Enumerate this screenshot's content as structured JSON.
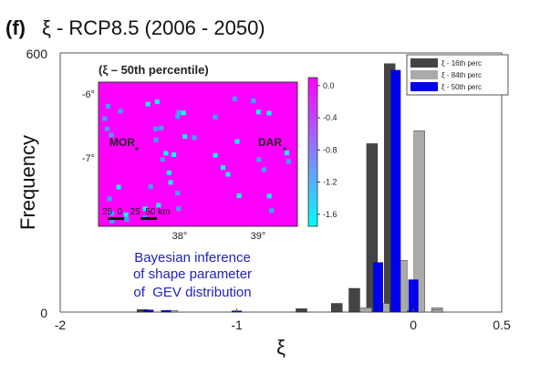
{
  "figure": {
    "panel_label": "(f)",
    "title_text": "ξ - RCP8.5 (2006 - 2050)",
    "annotation_lines": [
      "Bayesian inference",
      "of shape parameter",
      "of  GEV distribution"
    ]
  },
  "chart_data": [
    {
      "type": "bar",
      "title": "ξ - RCP8.5 (2006 - 2050)",
      "xlabel": "ξ",
      "ylabel": "Frequency",
      "xlim": [
        -2,
        0.5
      ],
      "ylim": [
        0,
        600
      ],
      "xticks": [
        -2,
        -1,
        0,
        0.5
      ],
      "xtick_labels": [
        "-2",
        "-1",
        "0",
        "0.5"
      ],
      "yticks": [
        0,
        600
      ],
      "ytick_labels": [
        "0",
        "600"
      ],
      "legend_position": "top-right",
      "grid": false,
      "bin_width": 0.1,
      "series": [
        {
          "name": "ξ - 16th perc",
          "color": "#444444",
          "bins": [
            {
              "x": -1.5,
              "value": 6
            },
            {
              "x": -0.6,
              "value": 8
            },
            {
              "x": -0.4,
              "value": 20
            },
            {
              "x": -0.3,
              "value": 55
            },
            {
              "x": -0.2,
              "value": 390
            },
            {
              "x": -0.1,
              "value": 575
            },
            {
              "x": 0.0,
              "value": 3
            }
          ]
        },
        {
          "name": "ξ - 84th perc",
          "color": "#aaaaaa",
          "bins": [
            {
              "x": -1.4,
              "value": 4
            },
            {
              "x": -0.3,
              "value": 10
            },
            {
              "x": -0.2,
              "value": 20
            },
            {
              "x": -0.1,
              "value": 120
            },
            {
              "x": 0.0,
              "value": 420
            },
            {
              "x": 0.1,
              "value": 10
            },
            {
              "x": 0.1,
              "value": 5
            }
          ]
        },
        {
          "name": "ξ - 50th perc",
          "color": "#0000ee",
          "bins": [
            {
              "x": -1.5,
              "value": 5
            },
            {
              "x": -1.4,
              "value": 4
            },
            {
              "x": -1.0,
              "value": 3
            },
            {
              "x": -0.2,
              "value": 115
            },
            {
              "x": -0.1,
              "value": 560
            },
            {
              "x": 0.0,
              "value": 75
            }
          ]
        }
      ]
    },
    {
      "type": "heatmap",
      "title": "(ξ – 50th percentile)",
      "yticks": [
        "-6°",
        "-7°"
      ],
      "xticks": [
        "38°",
        "39°"
      ],
      "place_labels": [
        "MOR",
        "DAR"
      ],
      "scale_bar_text": "25  0   25  50 km",
      "colorbar_ticks": [
        "0.0",
        "-0.4",
        "-0.8",
        "-1.2",
        "-1.6"
      ],
      "colorbar_range": [
        -1.75,
        0.1
      ],
      "background_value": 0.0,
      "anomaly_value": -1.5,
      "colors": {
        "high": "#ff00ff",
        "low": "#00ffff"
      }
    }
  ]
}
